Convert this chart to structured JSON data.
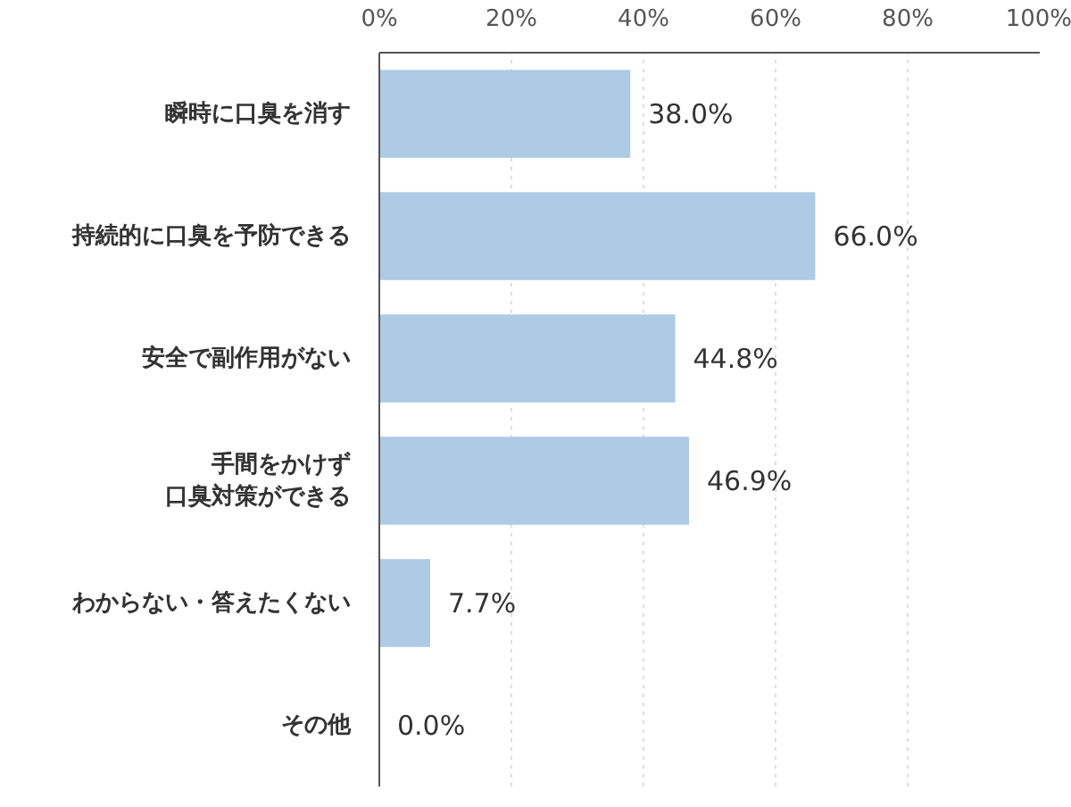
{
  "chart_data": {
    "type": "bar",
    "orientation": "horizontal",
    "categories": [
      "瞬時に口臭を消す",
      "持続的に口臭を予防できる",
      "安全で副作用がない",
      "手間をかけず口臭対策ができる",
      "わからない・答えたくない",
      "その他"
    ],
    "values": [
      38.0,
      66.0,
      44.8,
      46.9,
      7.7,
      0.0
    ],
    "value_labels": [
      "38.0%",
      "66.0%",
      "44.8%",
      "46.9%",
      "7.7%",
      "0.0%"
    ],
    "color": "#aecae4",
    "xlim": [
      0,
      100
    ],
    "xticks": [
      {
        "value": 0,
        "label": "0%"
      },
      {
        "value": 20,
        "label": "20%"
      },
      {
        "value": 40,
        "label": "40%"
      },
      {
        "value": 60,
        "label": "60%"
      },
      {
        "value": 80,
        "label": "80%"
      },
      {
        "value": 100,
        "label": "100%"
      }
    ],
    "grid": "x"
  }
}
